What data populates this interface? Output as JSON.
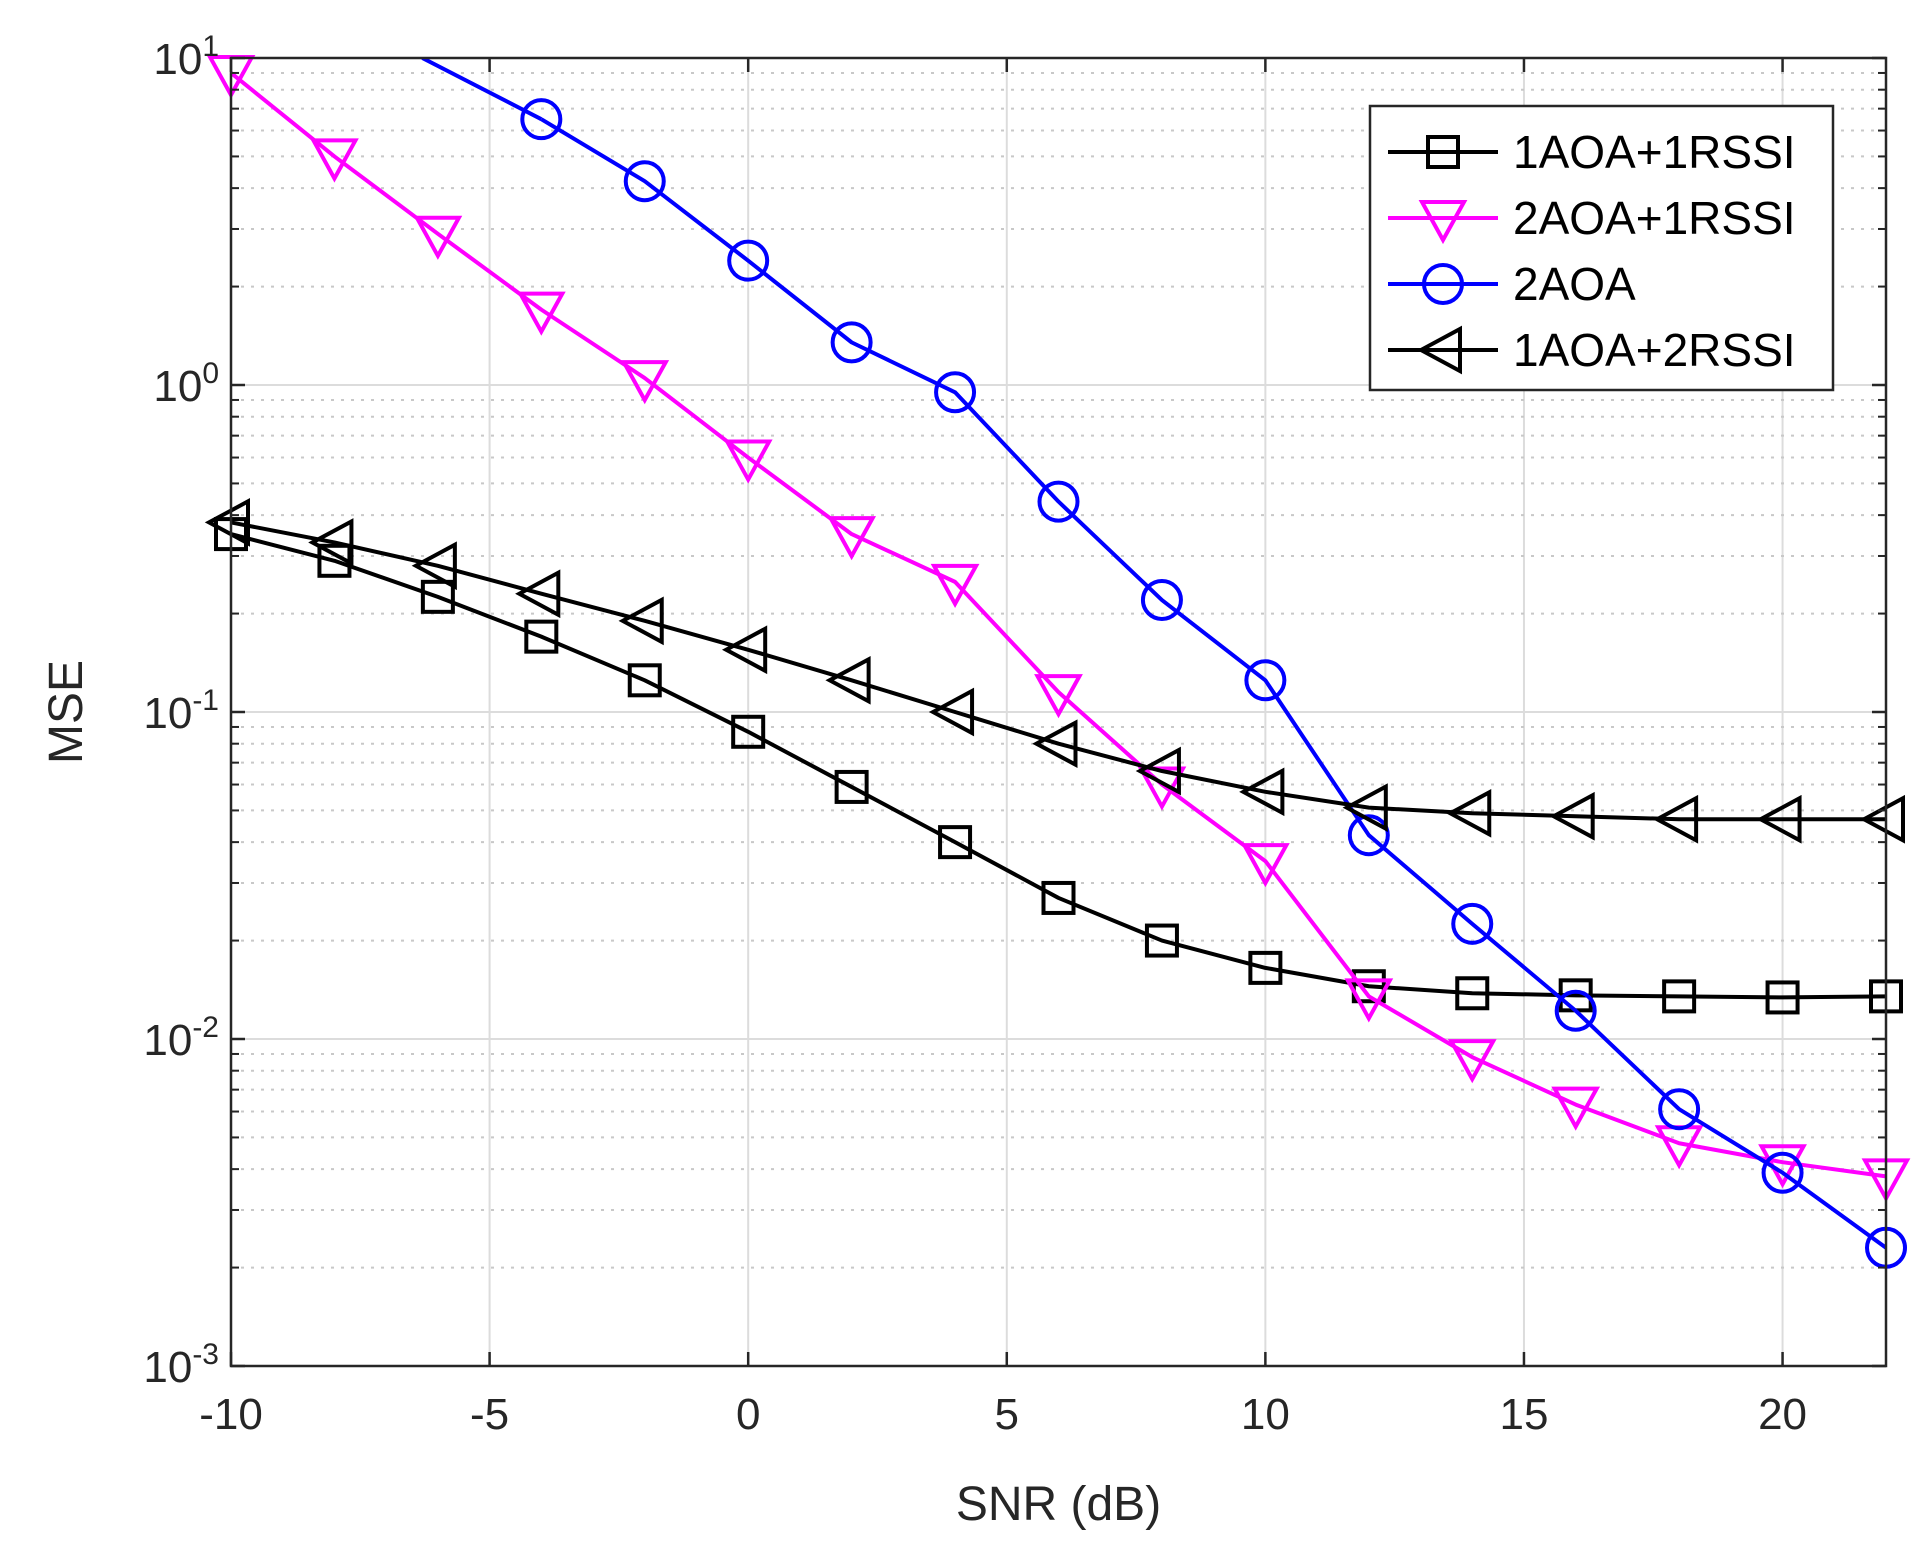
{
  "chart_data": {
    "type": "line",
    "title": "",
    "xlabel": "SNR (dB)",
    "ylabel": "MSE",
    "xscale": "linear",
    "yscale": "log",
    "xlim": [
      -10,
      22
    ],
    "ylim": [
      0.001,
      10
    ],
    "xticks": [
      -10,
      -5,
      0,
      5,
      10,
      15,
      20
    ],
    "xtick_labels": [
      "-10",
      "-5",
      "0",
      "5",
      "10",
      "15",
      "20"
    ],
    "yticks": [
      {
        "value": 0.001,
        "base": "10",
        "exp": "-3"
      },
      {
        "value": 0.01,
        "base": "10",
        "exp": "-2"
      },
      {
        "value": 0.1,
        "base": "10",
        "exp": "-1"
      },
      {
        "value": 1,
        "base": "10",
        "exp": "0"
      },
      {
        "value": 10,
        "base": "10",
        "exp": "1"
      }
    ],
    "grid": true,
    "minor_grid": true,
    "legend_position": "top-right",
    "x": [
      -10,
      -8,
      -6,
      -4,
      -2,
      0,
      2,
      4,
      6,
      8,
      10,
      12,
      14,
      16,
      18,
      20,
      22
    ],
    "series": [
      {
        "name": "1AOA+1RSSI",
        "color": "#000000",
        "marker": "square",
        "values": [
          0.35,
          0.29,
          0.225,
          0.17,
          0.125,
          0.087,
          0.059,
          0.04,
          0.027,
          0.02,
          0.0165,
          0.0145,
          0.0138,
          0.0136,
          0.0135,
          0.0134,
          0.0135
        ]
      },
      {
        "name": "2AOA+1RSSI",
        "color": "#ff00ff",
        "marker": "triangle-down",
        "values": [
          9.0,
          5.0,
          2.9,
          1.7,
          1.05,
          0.6,
          0.35,
          0.25,
          0.115,
          0.06,
          0.035,
          0.0135,
          0.0088,
          0.0063,
          0.0048,
          0.0042,
          0.0038
        ]
      },
      {
        "name": "2AOA",
        "color": "#0000ff",
        "marker": "circle",
        "values": [
          null,
          null,
          null,
          6.5,
          4.2,
          2.4,
          1.35,
          0.95,
          0.44,
          0.22,
          0.125,
          0.042,
          0.0225,
          0.0122,
          0.0061,
          0.0039,
          0.0023
        ]
      },
      {
        "name": "1AOA+2RSSI",
        "color": "#000000",
        "marker": "triangle-left",
        "values": [
          0.38,
          0.33,
          0.28,
          0.23,
          0.19,
          0.155,
          0.125,
          0.1,
          0.08,
          0.066,
          0.057,
          0.051,
          0.049,
          0.048,
          0.047,
          0.047,
          0.047
        ]
      }
    ],
    "extra_segments": [
      {
        "series": "2AOA",
        "from": {
          "x": -6.3,
          "y": 10
        },
        "to_index": 3
      }
    ]
  }
}
